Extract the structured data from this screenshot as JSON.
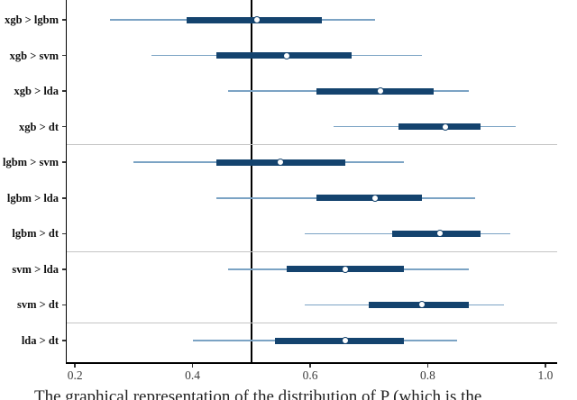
{
  "chart_data": {
    "type": "forest_interval",
    "title": "",
    "xlabel": "",
    "ylabel": "",
    "xlim": [
      0.186,
      1.02
    ],
    "x_ticks": [
      0.2,
      0.4,
      0.6,
      0.8,
      1.0
    ],
    "x_tick_labels": [
      "0.2",
      "0.4",
      "0.6",
      "0.8",
      "1.0"
    ],
    "reference_line_x": 0.5,
    "grid": false,
    "legend": "none",
    "rows": [
      {
        "label": "xgb > lgbm",
        "outer": [
          0.26,
          0.71
        ],
        "inner": [
          0.39,
          0.62
        ],
        "point": 0.51
      },
      {
        "label": "xgb > svm",
        "outer": [
          0.33,
          0.79
        ],
        "inner": [
          0.44,
          0.67
        ],
        "point": 0.56
      },
      {
        "label": "xgb > lda",
        "outer": [
          0.46,
          0.87
        ],
        "inner": [
          0.61,
          0.81
        ],
        "point": 0.72
      },
      {
        "label": "xgb > dt",
        "outer": [
          0.64,
          0.95
        ],
        "inner": [
          0.75,
          0.89
        ],
        "point": 0.83
      },
      {
        "label": "lgbm > svm",
        "outer": [
          0.3,
          0.76
        ],
        "inner": [
          0.44,
          0.66
        ],
        "point": 0.55
      },
      {
        "label": "lgbm > lda",
        "outer": [
          0.44,
          0.88
        ],
        "inner": [
          0.61,
          0.79
        ],
        "point": 0.71
      },
      {
        "label": "lgbm > dt",
        "outer": [
          0.59,
          0.94
        ],
        "inner": [
          0.74,
          0.89
        ],
        "point": 0.82
      },
      {
        "label": "svm > lda",
        "outer": [
          0.46,
          0.87
        ],
        "inner": [
          0.56,
          0.76
        ],
        "point": 0.66
      },
      {
        "label": "svm > dt",
        "outer": [
          0.59,
          0.93
        ],
        "inner": [
          0.7,
          0.87
        ],
        "point": 0.79
      },
      {
        "label": "lda > dt",
        "outer": [
          0.4,
          0.85
        ],
        "inner": [
          0.54,
          0.76
        ],
        "point": 0.66
      }
    ],
    "separators_after_row_index": [
      3,
      6,
      8
    ],
    "colors": {
      "outer_line": "#7ba3c4",
      "inner_bar": "#14436e",
      "point_fill": "#ffffff",
      "point_border": "#14436e",
      "separator": "#c4c4c4",
      "axis": "#000000",
      "tick": "#333333",
      "tick_label": "#3c3c3c",
      "reference_line": "#000000",
      "row_label": "#111111"
    }
  },
  "caption": {
    "text": "The graphical representation of the distribution of P (which is the"
  }
}
